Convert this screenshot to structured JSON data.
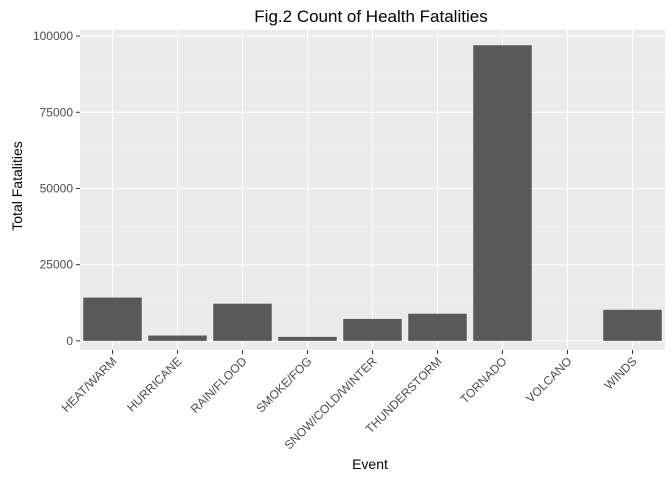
{
  "chart_data": {
    "type": "bar",
    "title": "Fig.2 Count of Health Fatalities",
    "xlabel": "Event",
    "ylabel": "Total Fatalities",
    "categories": [
      "HEAT/WARM",
      "HURRICANE",
      "RAIN/FLOOD",
      "SMOKE/FOG",
      "SNOW/COLD/WINTER",
      "THUNDERSTORM",
      "TORNADO",
      "VOLCANO",
      "WINDS"
    ],
    "values": [
      14200,
      1750,
      12200,
      1300,
      7200,
      8900,
      97000,
      0,
      10200
    ],
    "ylim": [
      -3000,
      102000
    ],
    "yticks": [
      0,
      25000,
      50000,
      75000,
      100000
    ],
    "ytick_labels": [
      "0",
      "25000",
      "50000",
      "75000",
      "100000"
    ],
    "grid": true,
    "legend": "none",
    "colors": {
      "bar": "#595959",
      "panel_background": "#ebebeb",
      "grid_major": "#ffffff",
      "grid_minor": "#f2f2f2"
    }
  }
}
